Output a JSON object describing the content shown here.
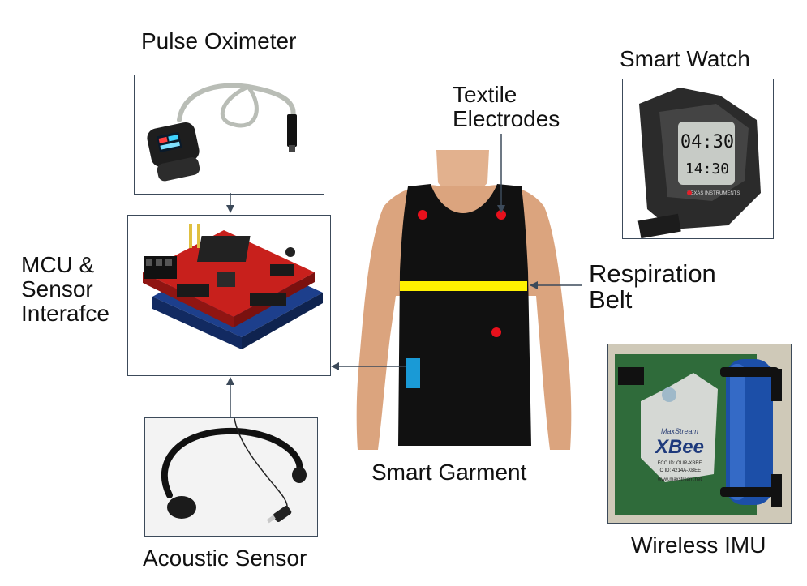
{
  "labels": {
    "pulse_oximeter": "Pulse Oximeter",
    "smart_watch": "Smart Watch",
    "textile_electrodes": "Textile\nElectrodes",
    "mcu": "MCU &\nSensor\nInterafce",
    "respiration_belt": "Respiration\nBelt",
    "smart_garment": "Smart Garment",
    "acoustic_sensor": "Acoustic Sensor",
    "wireless_imu": "Wireless IMU"
  },
  "watch_display": {
    "top": "04:30",
    "bottom": "14:30",
    "brand": "TEXAS INSTRUMENTS"
  },
  "xbee_module": {
    "maker": "MaxStream",
    "name": "XBee",
    "fcc": "FCC ID: OUR-XBEE",
    "ic": "IC ID: 4214A-XBEE",
    "url": "www.maxstream.net"
  },
  "colors": {
    "frame": "#3c4a5a",
    "arrow": "#3c4a5a",
    "electrode": "#e8101c",
    "belt": "#fff200",
    "interface_patch": "#1a9ad6",
    "pcb_red": "#c8201c",
    "pcb_blue": "#1d3f8c",
    "garment": "#111111",
    "xbee_board": "#2f6b3a"
  }
}
